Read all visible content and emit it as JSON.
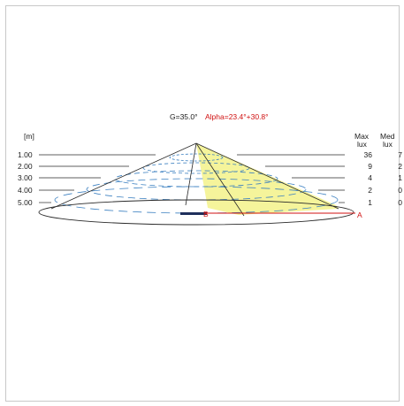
{
  "title_g": "G=35.0°",
  "title_alpha": "Alpha=23.4°+30.8°",
  "unit_label": "[m]",
  "columns": {
    "max_header": "Max",
    "max_unit": "lux",
    "med_header": "Med",
    "med_unit": "lux"
  },
  "rows": [
    {
      "distance": "1.00",
      "max": "36",
      "med": "7"
    },
    {
      "distance": "2.00",
      "max": "9",
      "med": "2"
    },
    {
      "distance": "3.00",
      "max": "4",
      "med": "1"
    },
    {
      "distance": "4.00",
      "max": "2",
      "med": "0"
    },
    {
      "distance": "5.00",
      "max": "1",
      "med": "0"
    }
  ],
  "markers": {
    "center": "B",
    "end": "A"
  },
  "colors": {
    "outline": "#2a2a2a",
    "isoline": "#3a7fc0",
    "beam": "#f3f28a",
    "axis": "#d01010",
    "frame": "#c8c8c8"
  }
}
